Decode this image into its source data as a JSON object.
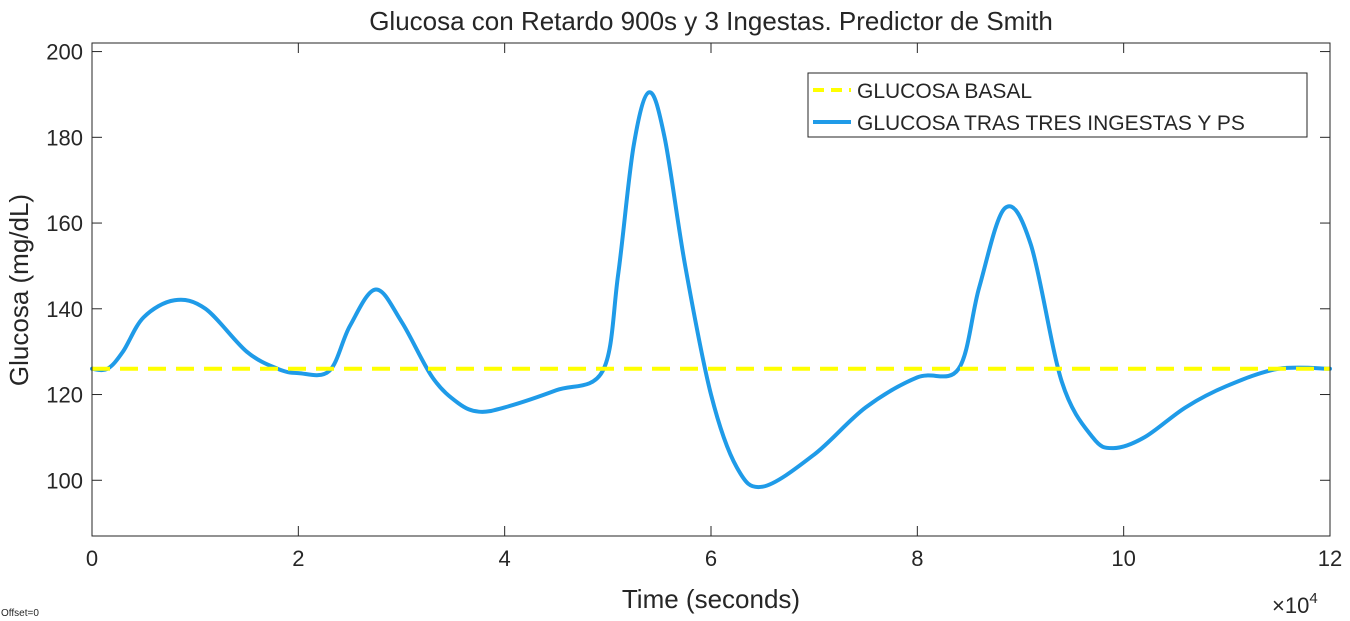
{
  "offset_note": "Offset=0",
  "chart_data": {
    "type": "line",
    "title": "Glucosa con Retardo 900s y 3 Ingestas. Predictor de Smith",
    "xlabel": "Time (seconds)",
    "ylabel": "Glucosa (mg/dL)",
    "x_exponent_label": "×10",
    "x_exponent_power": "4",
    "xlim": [
      0,
      12
    ],
    "ylim": [
      87,
      202
    ],
    "xticks": [
      0,
      2,
      4,
      6,
      8,
      10,
      12
    ],
    "xtick_labels": [
      "0",
      "2",
      "4",
      "6",
      "8",
      "10",
      "12"
    ],
    "yticks": [
      100,
      120,
      140,
      160,
      180,
      200
    ],
    "ytick_labels": [
      "100",
      "120",
      "140",
      "160",
      "180",
      "200"
    ],
    "grid": false,
    "legend_position": "top-right",
    "colors": {
      "basal": "#FFFF00",
      "glucose": "#1F9BE8"
    },
    "series": [
      {
        "name": "GLUCOSA BASAL",
        "style": "dashed",
        "x": [
          0,
          12
        ],
        "y": [
          126,
          126
        ]
      },
      {
        "name": "GLUCOSA TRAS TRES INGESTAS Y PS",
        "style": "solid",
        "x": [
          0,
          0.15,
          0.3,
          0.5,
          0.8,
          1.1,
          1.5,
          1.8,
          2.0,
          2.3,
          2.5,
          2.75,
          3.0,
          3.3,
          3.55,
          3.75,
          4.0,
          4.5,
          4.95,
          5.1,
          5.25,
          5.4,
          5.55,
          5.75,
          6.0,
          6.25,
          6.5,
          7.0,
          7.5,
          8.0,
          8.4,
          8.6,
          8.85,
          9.1,
          9.4,
          9.7,
          9.9,
          10.2,
          10.6,
          11.0,
          11.5,
          12.0
        ],
        "y": [
          126,
          126,
          130,
          138,
          142,
          140,
          130,
          126,
          125,
          125.5,
          136,
          144.5,
          137,
          124,
          118,
          116,
          117,
          121,
          125.5,
          148,
          178,
          190.5,
          180,
          150,
          120,
          103,
          98.5,
          106,
          117,
          124,
          126,
          145,
          163.5,
          155,
          123,
          110,
          107.5,
          110,
          117,
          122,
          126,
          126
        ]
      }
    ]
  }
}
